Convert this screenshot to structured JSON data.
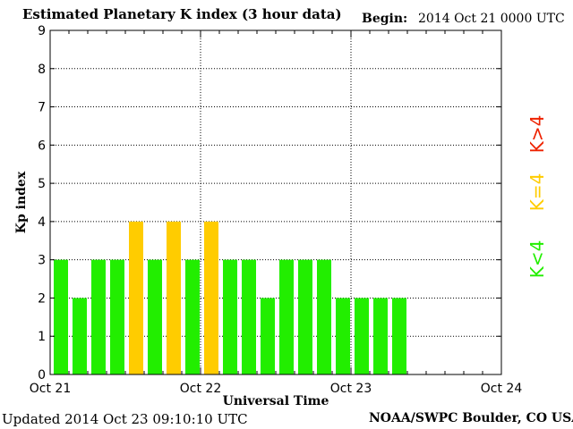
{
  "header": {
    "title": "Estimated Planetary K index (3 hour data)",
    "begin_label": "Begin:",
    "begin_value": "2014 Oct 21 0000 UTC"
  },
  "footer": {
    "updated": "Updated 2014 Oct 23 09:10:10 UTC",
    "source": "NOAA/SWPC Boulder, CO USA"
  },
  "colors": {
    "low": "#22ee00",
    "storm_threshold": "#ffcc00",
    "high": "#ee2200"
  },
  "chart_data": {
    "type": "bar",
    "title": "Estimated Planetary K index (3 hour data)",
    "xlabel": "Universal Time",
    "ylabel": "Kp index",
    "ylim": [
      0,
      9
    ],
    "yticks": [
      "0",
      "1",
      "2",
      "3",
      "4",
      "5",
      "6",
      "7",
      "8",
      "9"
    ],
    "xticks": [
      "Oct 21",
      "Oct 22",
      "Oct 23",
      "Oct 24"
    ],
    "grid": true,
    "intervals_per_day": 8,
    "days": 3,
    "values": [
      3,
      2,
      3,
      3,
      4,
      3,
      4,
      3,
      4,
      3,
      3,
      2,
      3,
      3,
      3,
      2,
      2,
      2,
      2
    ],
    "legend": [
      {
        "label": "K<4",
        "color": "#22ee00"
      },
      {
        "label": "K=4",
        "color": "#ffcc00"
      },
      {
        "label": "K>4",
        "color": "#ee2200"
      }
    ]
  }
}
